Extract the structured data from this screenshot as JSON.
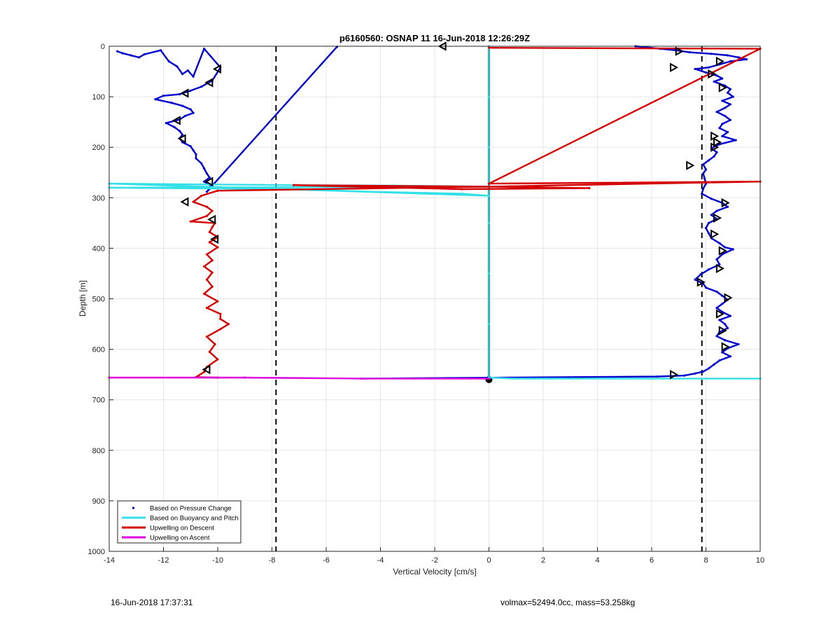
{
  "chart_data": {
    "type": "scatter",
    "title": "p6160560: OSNAP 11 16-Jun-2018 12:26:29Z",
    "xlabel": "Vertical Velocity [cm/s]",
    "ylabel": "Depth [m]",
    "xlim": [
      -14,
      10
    ],
    "ylim": [
      0,
      1000
    ],
    "y_reversed": true,
    "grid": true,
    "x_ticks": [
      -14,
      -12,
      -10,
      -8,
      -6,
      -4,
      -2,
      0,
      2,
      4,
      6,
      8,
      10
    ],
    "y_ticks": [
      0,
      100,
      200,
      300,
      400,
      500,
      600,
      700,
      800,
      900,
      1000
    ],
    "legend_position": "bottom-left",
    "legend": [
      {
        "label": "Based on Pressure Change",
        "color": "#0000cc",
        "style": "dot"
      },
      {
        "label": "Based on Buoyancy and Pitch",
        "color": "#33e0e8",
        "style": "line"
      },
      {
        "label": "Upwelling on Descent",
        "color": "#d40000",
        "style": "line"
      },
      {
        "label": "Upwelling on Ascent",
        "color": "#dd00dd",
        "style": "line"
      }
    ],
    "reference_lines": {
      "dashed_x": [
        -7.85,
        7.85
      ],
      "solid_x": 0
    },
    "series": [
      {
        "name": "Based on Pressure Change (descent)",
        "color": "#0000cc",
        "points": [
          [
            -13.7,
            10
          ],
          [
            -13.5,
            14
          ],
          [
            -13.2,
            18
          ],
          [
            -12.9,
            22
          ],
          [
            -12.7,
            16
          ],
          [
            -12.1,
            8
          ],
          [
            -11.8,
            30
          ],
          [
            -11.5,
            40
          ],
          [
            -11.3,
            55
          ],
          [
            -11.1,
            48
          ],
          [
            -10.9,
            60
          ],
          [
            -10.5,
            5
          ],
          [
            -9.9,
            42
          ],
          [
            -10.2,
            68
          ],
          [
            -10.6,
            80
          ],
          [
            -11.0,
            88
          ],
          [
            -11.4,
            95
          ],
          [
            -12.0,
            98
          ],
          [
            -12.3,
            105
          ],
          [
            -11.7,
            112
          ],
          [
            -11.3,
            118
          ],
          [
            -11.0,
            125
          ],
          [
            -10.9,
            132
          ],
          [
            -11.2,
            138
          ],
          [
            -11.4,
            145
          ],
          [
            -11.9,
            152
          ],
          [
            -11.6,
            160
          ],
          [
            -11.4,
            168
          ],
          [
            -11.3,
            175
          ],
          [
            -11.4,
            182
          ],
          [
            -11.3,
            190
          ],
          [
            -11.0,
            198
          ],
          [
            -10.9,
            206
          ],
          [
            -10.8,
            214
          ],
          [
            -10.8,
            222
          ],
          [
            -10.6,
            232
          ],
          [
            -10.5,
            242
          ],
          [
            -10.4,
            252
          ],
          [
            -10.3,
            260
          ],
          [
            -10.5,
            268
          ],
          [
            -10.2,
            278
          ],
          [
            -10.4,
            288
          ],
          [
            -5.6,
            1
          ]
        ]
      },
      {
        "name": "Based on Pressure Change (ascent)",
        "color": "#0000cc",
        "points": [
          [
            5.4,
            0
          ],
          [
            5.8,
            2
          ],
          [
            6.3,
            5
          ],
          [
            6.9,
            8
          ],
          [
            7.4,
            12
          ],
          [
            8.2,
            15
          ],
          [
            8.8,
            18
          ],
          [
            9.2,
            22
          ],
          [
            9.5,
            26
          ],
          [
            8.9,
            30
          ],
          [
            8.5,
            36
          ],
          [
            8.1,
            42
          ],
          [
            7.6,
            45
          ],
          [
            8.0,
            52
          ],
          [
            8.4,
            58
          ],
          [
            8.6,
            64
          ],
          [
            8.3,
            70
          ],
          [
            8.7,
            78
          ],
          [
            8.9,
            85
          ],
          [
            8.8,
            92
          ],
          [
            9.0,
            100
          ],
          [
            8.6,
            108
          ],
          [
            8.9,
            115
          ],
          [
            8.7,
            122
          ],
          [
            8.4,
            130
          ],
          [
            8.7,
            138
          ],
          [
            8.9,
            146
          ],
          [
            8.6,
            154
          ],
          [
            8.5,
            162
          ],
          [
            8.8,
            170
          ],
          [
            8.6,
            178
          ],
          [
            9.1,
            186
          ],
          [
            8.5,
            194
          ],
          [
            8.2,
            202
          ],
          [
            8.4,
            210
          ],
          [
            8.3,
            218
          ],
          [
            8.1,
            226
          ],
          [
            7.9,
            234
          ],
          [
            8.0,
            244
          ],
          [
            7.9,
            252
          ],
          [
            7.95,
            262
          ],
          [
            8.0,
            272
          ],
          [
            7.9,
            282
          ],
          [
            7.85,
            292
          ],
          [
            8.2,
            302
          ],
          [
            8.6,
            310
          ],
          [
            8.8,
            318
          ],
          [
            8.4,
            326
          ],
          [
            8.2,
            334
          ],
          [
            8.4,
            342
          ],
          [
            8.1,
            350
          ],
          [
            8.0,
            360
          ],
          [
            8.1,
            370
          ],
          [
            8.2,
            380
          ],
          [
            8.5,
            390
          ],
          [
            8.7,
            398
          ],
          [
            9.0,
            402
          ],
          [
            8.6,
            412
          ],
          [
            8.4,
            422
          ],
          [
            8.5,
            432
          ],
          [
            8.1,
            442
          ],
          [
            7.8,
            452
          ],
          [
            7.6,
            462
          ],
          [
            7.9,
            470
          ],
          [
            8.0,
            478
          ],
          [
            8.4,
            486
          ],
          [
            8.6,
            494
          ],
          [
            8.8,
            502
          ],
          [
            8.6,
            510
          ],
          [
            8.4,
            518
          ],
          [
            8.6,
            526
          ],
          [
            8.9,
            534
          ],
          [
            8.5,
            542
          ],
          [
            8.7,
            550
          ],
          [
            8.8,
            558
          ],
          [
            8.5,
            566
          ],
          [
            8.4,
            574
          ],
          [
            8.7,
            582
          ],
          [
            9.2,
            590
          ],
          [
            8.8,
            598
          ],
          [
            8.6,
            606
          ],
          [
            8.9,
            614
          ],
          [
            8.5,
            622
          ],
          [
            8.3,
            630
          ],
          [
            8.1,
            638
          ],
          [
            7.9,
            644
          ],
          [
            7.6,
            648
          ],
          [
            7.2,
            652
          ],
          [
            6.2,
            654
          ],
          [
            -4.7,
            658
          ]
        ]
      },
      {
        "name": "Based on Buoyancy and Pitch",
        "color": "#33e0e8",
        "points": [
          [
            0,
            0
          ],
          [
            0,
            100
          ],
          [
            0,
            200
          ],
          [
            0,
            296
          ],
          [
            -14,
            272
          ],
          [
            -7.2,
            275
          ],
          [
            -3.5,
            276
          ],
          [
            0,
            278
          ],
          [
            -14,
            280
          ],
          [
            -7.0,
            283
          ],
          [
            -4.5,
            288
          ],
          [
            -1.0,
            292
          ],
          [
            0,
            296
          ],
          [
            0,
            350
          ],
          [
            0,
            450
          ],
          [
            0,
            550
          ],
          [
            0,
            656
          ],
          [
            0.9,
            658
          ],
          [
            2.1,
            658
          ],
          [
            3.1,
            658
          ],
          [
            4.6,
            658
          ],
          [
            10,
            658
          ]
        ]
      },
      {
        "name": "Upwelling on Descent",
        "color": "#d40000",
        "points": [
          [
            0,
            3
          ],
          [
            10,
            5
          ],
          [
            0,
            272
          ],
          [
            10,
            268
          ],
          [
            0,
            278
          ],
          [
            3.7,
            281
          ],
          [
            -1.0,
            283
          ],
          [
            -7.2,
            275
          ],
          [
            0,
            278
          ],
          [
            -10.0,
            286
          ],
          [
            -10.6,
            296
          ],
          [
            -10.9,
            308
          ],
          [
            -10.4,
            318
          ],
          [
            -10.2,
            326
          ],
          [
            -10.4,
            336
          ],
          [
            -11.0,
            347
          ],
          [
            -10.1,
            350
          ],
          [
            -10.2,
            358
          ],
          [
            -10.3,
            368
          ],
          [
            -10.0,
            378
          ],
          [
            -10.3,
            388
          ],
          [
            -10.0,
            398
          ],
          [
            -10.4,
            412
          ],
          [
            -10.2,
            424
          ],
          [
            -10.5,
            436
          ],
          [
            -10.2,
            448
          ],
          [
            -10.4,
            462
          ],
          [
            -10.2,
            476
          ],
          [
            -10.5,
            490
          ],
          [
            -10.0,
            505
          ],
          [
            -10.4,
            518
          ],
          [
            -9.9,
            530
          ],
          [
            -9.9,
            540
          ],
          [
            -9.6,
            550
          ],
          [
            -9.9,
            560
          ],
          [
            -10.4,
            575
          ],
          [
            -10.1,
            590
          ],
          [
            -10.3,
            605
          ],
          [
            -10.0,
            620
          ],
          [
            -10.4,
            635
          ],
          [
            -10.5,
            645
          ],
          [
            -10.8,
            655
          ],
          [
            -10.0,
            656
          ]
        ]
      },
      {
        "name": "Upwelling on Ascent",
        "color": "#dd00dd",
        "points": [
          [
            -14,
            656
          ],
          [
            -9.0,
            656
          ],
          [
            -4.7,
            658
          ],
          [
            0,
            658
          ]
        ]
      }
    ],
    "triangle_markers": [
      [
        -1.7,
        0
      ],
      [
        -10.0,
        45
      ],
      [
        -10.3,
        72
      ],
      [
        -11.2,
        93
      ],
      [
        -11.5,
        147
      ],
      [
        -11.3,
        183
      ],
      [
        -10.3,
        268
      ],
      [
        -10.2,
        343
      ],
      [
        -11.2,
        308
      ],
      [
        -10.1,
        382
      ],
      [
        -10.4,
        640
      ],
      [
        8.5,
        30
      ],
      [
        8.2,
        55
      ],
      [
        8.6,
        82
      ],
      [
        8.3,
        178
      ],
      [
        8.4,
        190
      ],
      [
        8.3,
        200
      ],
      [
        7.4,
        236
      ],
      [
        8.7,
        310
      ],
      [
        8.4,
        340
      ],
      [
        8.3,
        372
      ],
      [
        8.6,
        405
      ],
      [
        8.5,
        440
      ],
      [
        7.8,
        467
      ],
      [
        8.8,
        498
      ],
      [
        8.5,
        530
      ],
      [
        8.6,
        563
      ],
      [
        8.7,
        595
      ],
      [
        7.0,
        10
      ],
      [
        6.8,
        42
      ],
      [
        6.8,
        650
      ]
    ]
  },
  "footer": {
    "left": "16-Jun-2018 17:37:31",
    "right": "volmax=52494.0cc, mass=53.258kg"
  }
}
